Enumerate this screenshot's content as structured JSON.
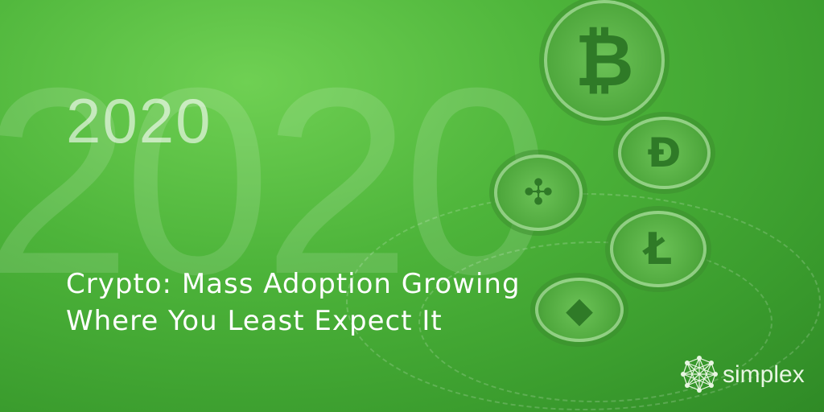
{
  "banner": {
    "background_year": "2020",
    "year": "2020",
    "headline_line1": "Crypto: Mass Adoption Growing",
    "headline_line2": "Where You Least Expect It",
    "coins": [
      "bitcoin-icon",
      "dash-icon",
      "ripple-icon",
      "litecoin-icon",
      "ethereum-icon"
    ],
    "logo_text": "simplex",
    "colors": {
      "background": "#4db43a",
      "text": "#ffffff",
      "coin": "#5cb548"
    }
  }
}
